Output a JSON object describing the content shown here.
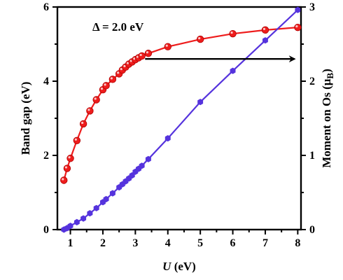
{
  "chart_data": {
    "type": "line",
    "xlabel": {
      "var": "U",
      "unit": " (eV)"
    },
    "ylabel_left": "Band gap (eV)",
    "ylabel_right": {
      "prefix": "Moment on Os (μ",
      "sub": "B",
      "suffix": ")"
    },
    "annotation": "Δ = 2.0 eV",
    "xlim": [
      0.6,
      8.1
    ],
    "ylim_left": [
      0,
      6
    ],
    "ylim_right": [
      0,
      3
    ],
    "xticks": [
      "1",
      "2",
      "3",
      "4",
      "5",
      "6",
      "7",
      "8"
    ],
    "yticks_left": [
      "0",
      "2",
      "4",
      "6"
    ],
    "yticks_right": [
      "0",
      "1",
      "2",
      "3"
    ],
    "arrow": {
      "from": [
        3.3,
        4.6
      ],
      "to": [
        7.9,
        4.6
      ],
      "direction": "right"
    },
    "series": [
      {
        "axis": "left",
        "color": "#ee1c1c",
        "marker": "circle",
        "x": [
          0.8,
          0.9,
          1.0,
          1.2,
          1.4,
          1.6,
          1.8,
          2.0,
          2.1,
          2.3,
          2.5,
          2.6,
          2.7,
          2.8,
          2.9,
          3.0,
          3.1,
          3.2,
          3.4,
          4.0,
          5.0,
          6.0,
          7.0,
          8.0
        ],
        "y": [
          1.33,
          1.65,
          1.92,
          2.4,
          2.85,
          3.2,
          3.5,
          3.77,
          3.88,
          4.05,
          4.2,
          4.3,
          4.38,
          4.46,
          4.52,
          4.58,
          4.63,
          4.68,
          4.75,
          4.93,
          5.13,
          5.28,
          5.38,
          5.45
        ]
      },
      {
        "axis": "right",
        "color": "#5533dd",
        "marker": "hexagon",
        "x": [
          0.8,
          0.9,
          1.0,
          1.2,
          1.4,
          1.6,
          1.8,
          2.0,
          2.1,
          2.3,
          2.5,
          2.6,
          2.7,
          2.8,
          2.9,
          3.0,
          3.1,
          3.2,
          3.4,
          4.0,
          5.0,
          6.0,
          7.0,
          8.0
        ],
        "y": [
          0.0,
          0.02,
          0.05,
          0.1,
          0.15,
          0.22,
          0.29,
          0.37,
          0.41,
          0.49,
          0.57,
          0.61,
          0.65,
          0.69,
          0.73,
          0.78,
          0.82,
          0.86,
          0.95,
          1.23,
          1.72,
          2.14,
          2.55,
          2.96
        ]
      }
    ]
  }
}
